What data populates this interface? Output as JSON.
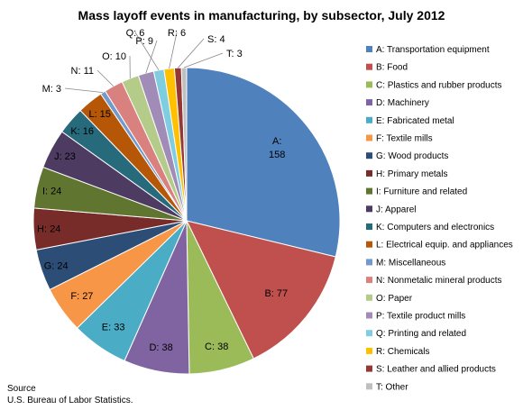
{
  "chart_data": {
    "type": "pie",
    "title": "Mass layoff events in manufacturing, by subsector, July 2012",
    "source_label": "Source",
    "source": "U.S. Bureau of Labor Statistics.",
    "legend_position": "right",
    "start_angle_deg": 90,
    "direction": "clockwise",
    "slices": [
      {
        "key": "A",
        "name": "Transportation equipment",
        "value": 158,
        "color": "#4F81BD"
      },
      {
        "key": "B",
        "name": "Food",
        "value": 77,
        "color": "#C0504D"
      },
      {
        "key": "C",
        "name": "Plastics and rubber products",
        "value": 38,
        "color": "#9BBB59"
      },
      {
        "key": "D",
        "name": "Machinery",
        "value": 38,
        "color": "#8064A2"
      },
      {
        "key": "E",
        "name": "Fabricated metal",
        "value": 33,
        "color": "#4BACC6"
      },
      {
        "key": "F",
        "name": "Textile mills",
        "value": 27,
        "color": "#F79646"
      },
      {
        "key": "G",
        "name": "Wood products",
        "value": 24,
        "color": "#2C4D75"
      },
      {
        "key": "H",
        "name": "Primary metals",
        "value": 24,
        "color": "#772C2A"
      },
      {
        "key": "I",
        "name": "Furniture and related",
        "value": 24,
        "color": "#5F7530"
      },
      {
        "key": "J",
        "name": "Apparel",
        "value": 23,
        "color": "#4D3B62"
      },
      {
        "key": "K",
        "name": "Computers and electronics",
        "value": 16,
        "color": "#276A7C"
      },
      {
        "key": "L",
        "name": "Electrical equip. and appliances",
        "value": 15,
        "color": "#B65708"
      },
      {
        "key": "M",
        "name": "Miscellaneous",
        "value": 3,
        "color": "#729ACA"
      },
      {
        "key": "N",
        "name": "Nonmetalic mineral products",
        "value": 11,
        "color": "#D9817F"
      },
      {
        "key": "O",
        "name": "Paper",
        "value": 10,
        "color": "#B5CB89"
      },
      {
        "key": "P",
        "name": "Textile product mills",
        "value": 9,
        "color": "#A18CB8"
      },
      {
        "key": "Q",
        "name": "Printing and related",
        "value": 6,
        "color": "#7ECDE0"
      },
      {
        "key": "R",
        "name": "Chemicals",
        "value": 6,
        "color": "#FFC000"
      },
      {
        "key": "S",
        "name": "Leather and allied products",
        "value": 4,
        "color": "#953735"
      },
      {
        "key": "T",
        "name": "Other",
        "value": 3,
        "color": "#BFBFBF"
      }
    ]
  }
}
